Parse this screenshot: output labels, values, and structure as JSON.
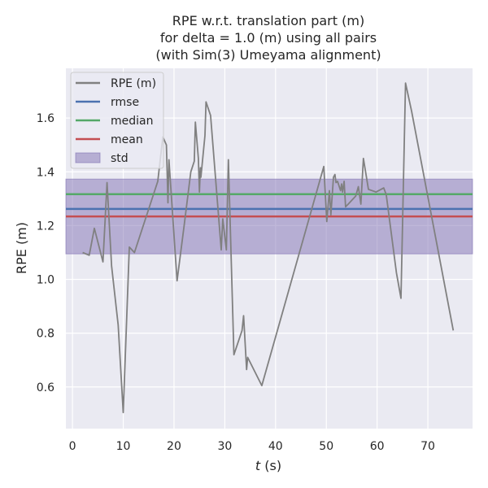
{
  "chart_data": {
    "type": "line",
    "title_lines": [
      "RPE w.r.t. translation part (m)",
      "for delta = 1.0 (m) using all pairs",
      "(with Sim(3) Umeyama alignment)"
    ],
    "xlabel": "t (s)",
    "xlabel_var": "t",
    "xlabel_unit": " (s)",
    "ylabel": "RPE (m)",
    "xlim": [
      -1.3,
      78.8
    ],
    "ylim": [
      0.445,
      1.785
    ],
    "xticks": [
      0,
      10,
      20,
      30,
      40,
      50,
      60,
      70
    ],
    "yticks": [
      0.6,
      0.8,
      1.0,
      1.2,
      1.4,
      1.6
    ],
    "ytick_labels": [
      "0.6",
      "0.8",
      "1.0",
      "1.2",
      "1.4",
      "1.6"
    ],
    "grid": true,
    "legend_position": "top-left",
    "colors": {
      "background": "#eaeaf2",
      "grid": "#ffffff",
      "rpe": "#808080",
      "rmse": "#4c72b0",
      "median": "#55a868",
      "mean": "#c44e52",
      "std": "#8172b3"
    },
    "series": [
      {
        "name": "RPE (m)",
        "x": [
          2.0,
          3.3,
          4.3,
          6.0,
          6.8,
          7.7,
          9.0,
          10.0,
          11.2,
          12.2,
          16.8,
          17.8,
          18.5,
          18.8,
          19.0,
          20.6,
          22.0,
          23.3,
          24.0,
          24.2,
          24.8,
          25.0,
          25.2,
          25.3,
          26.1,
          26.3,
          27.2,
          29.3,
          29.6,
          30.3,
          30.7,
          31.8,
          33.4,
          33.7,
          34.3,
          34.5,
          37.3,
          49.5,
          50.1,
          50.6,
          50.9,
          51.4,
          51.7,
          51.9,
          52.2,
          52.8,
          53.0,
          53.2,
          53.5,
          53.8,
          54.3,
          55.8,
          56.3,
          56.8,
          57.3,
          58.3,
          59.8,
          61.3,
          61.8,
          63.8,
          64.7,
          65.6,
          66.8,
          75.0
        ],
        "y": [
          1.1,
          1.09,
          1.19,
          1.065,
          1.36,
          1.05,
          0.83,
          0.505,
          1.12,
          1.1,
          1.365,
          1.53,
          1.5,
          1.285,
          1.445,
          0.995,
          1.2,
          1.4,
          1.44,
          1.585,
          1.45,
          1.325,
          1.415,
          1.38,
          1.535,
          1.66,
          1.61,
          1.11,
          1.225,
          1.11,
          1.445,
          0.72,
          0.81,
          0.865,
          0.665,
          0.71,
          0.605,
          1.42,
          1.215,
          1.33,
          1.24,
          1.38,
          1.39,
          1.36,
          1.365,
          1.33,
          1.355,
          1.325,
          1.365,
          1.27,
          1.28,
          1.31,
          1.345,
          1.28,
          1.45,
          1.335,
          1.325,
          1.34,
          1.315,
          1.025,
          0.93,
          1.73,
          1.625,
          0.81
        ]
      }
    ],
    "stats": {
      "rmse": 1.262,
      "median": 1.317,
      "mean": 1.234,
      "std_low": 1.095,
      "std_high": 1.373
    },
    "legend": [
      {
        "key": "rpe",
        "label": "RPE (m)",
        "kind": "line"
      },
      {
        "key": "rmse",
        "label": "rmse",
        "kind": "line"
      },
      {
        "key": "median",
        "label": "median",
        "kind": "line"
      },
      {
        "key": "mean",
        "label": "mean",
        "kind": "line"
      },
      {
        "key": "std",
        "label": "std",
        "kind": "patch"
      }
    ]
  }
}
